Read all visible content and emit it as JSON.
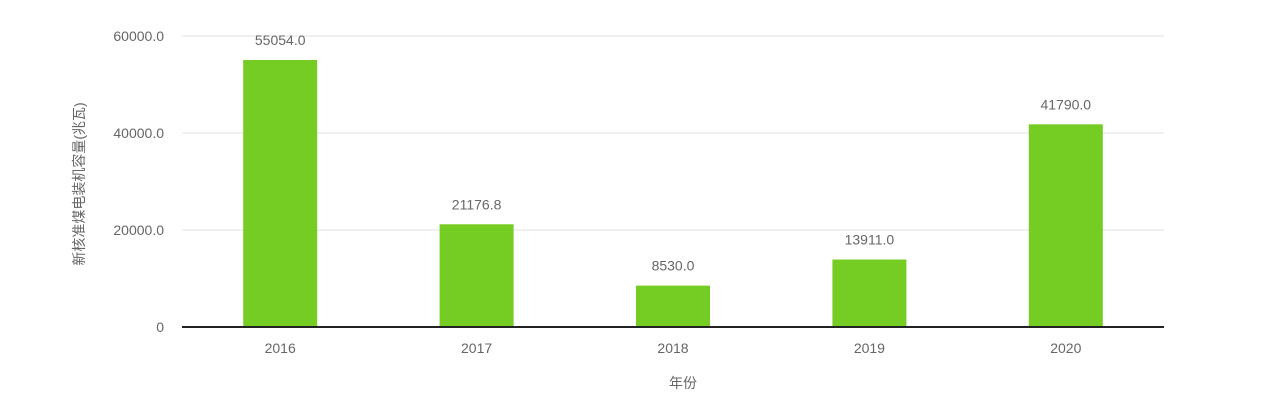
{
  "chart_data": {
    "type": "bar",
    "categories": [
      "2016",
      "2017",
      "2018",
      "2019",
      "2020"
    ],
    "values": [
      55054.0,
      21176.8,
      8530.0,
      13911.0,
      41790.0
    ],
    "value_labels": [
      "55054.0",
      "21176.8",
      "8530.0",
      "13911.0",
      "41790.0"
    ],
    "xlabel": "年份",
    "ylabel": "新核准煤电装机容量(兆瓦)",
    "ylim": [
      0,
      60000
    ],
    "yticks": [
      {
        "value": 0,
        "label": "0"
      },
      {
        "value": 20000,
        "label": "20000.0"
      },
      {
        "value": 40000,
        "label": "40000.0"
      },
      {
        "value": 60000,
        "label": "60000.0"
      }
    ],
    "grid": true,
    "bar_color": "#75cc23",
    "grid_color": "#e0e0e0",
    "axis_color": "#222222"
  }
}
